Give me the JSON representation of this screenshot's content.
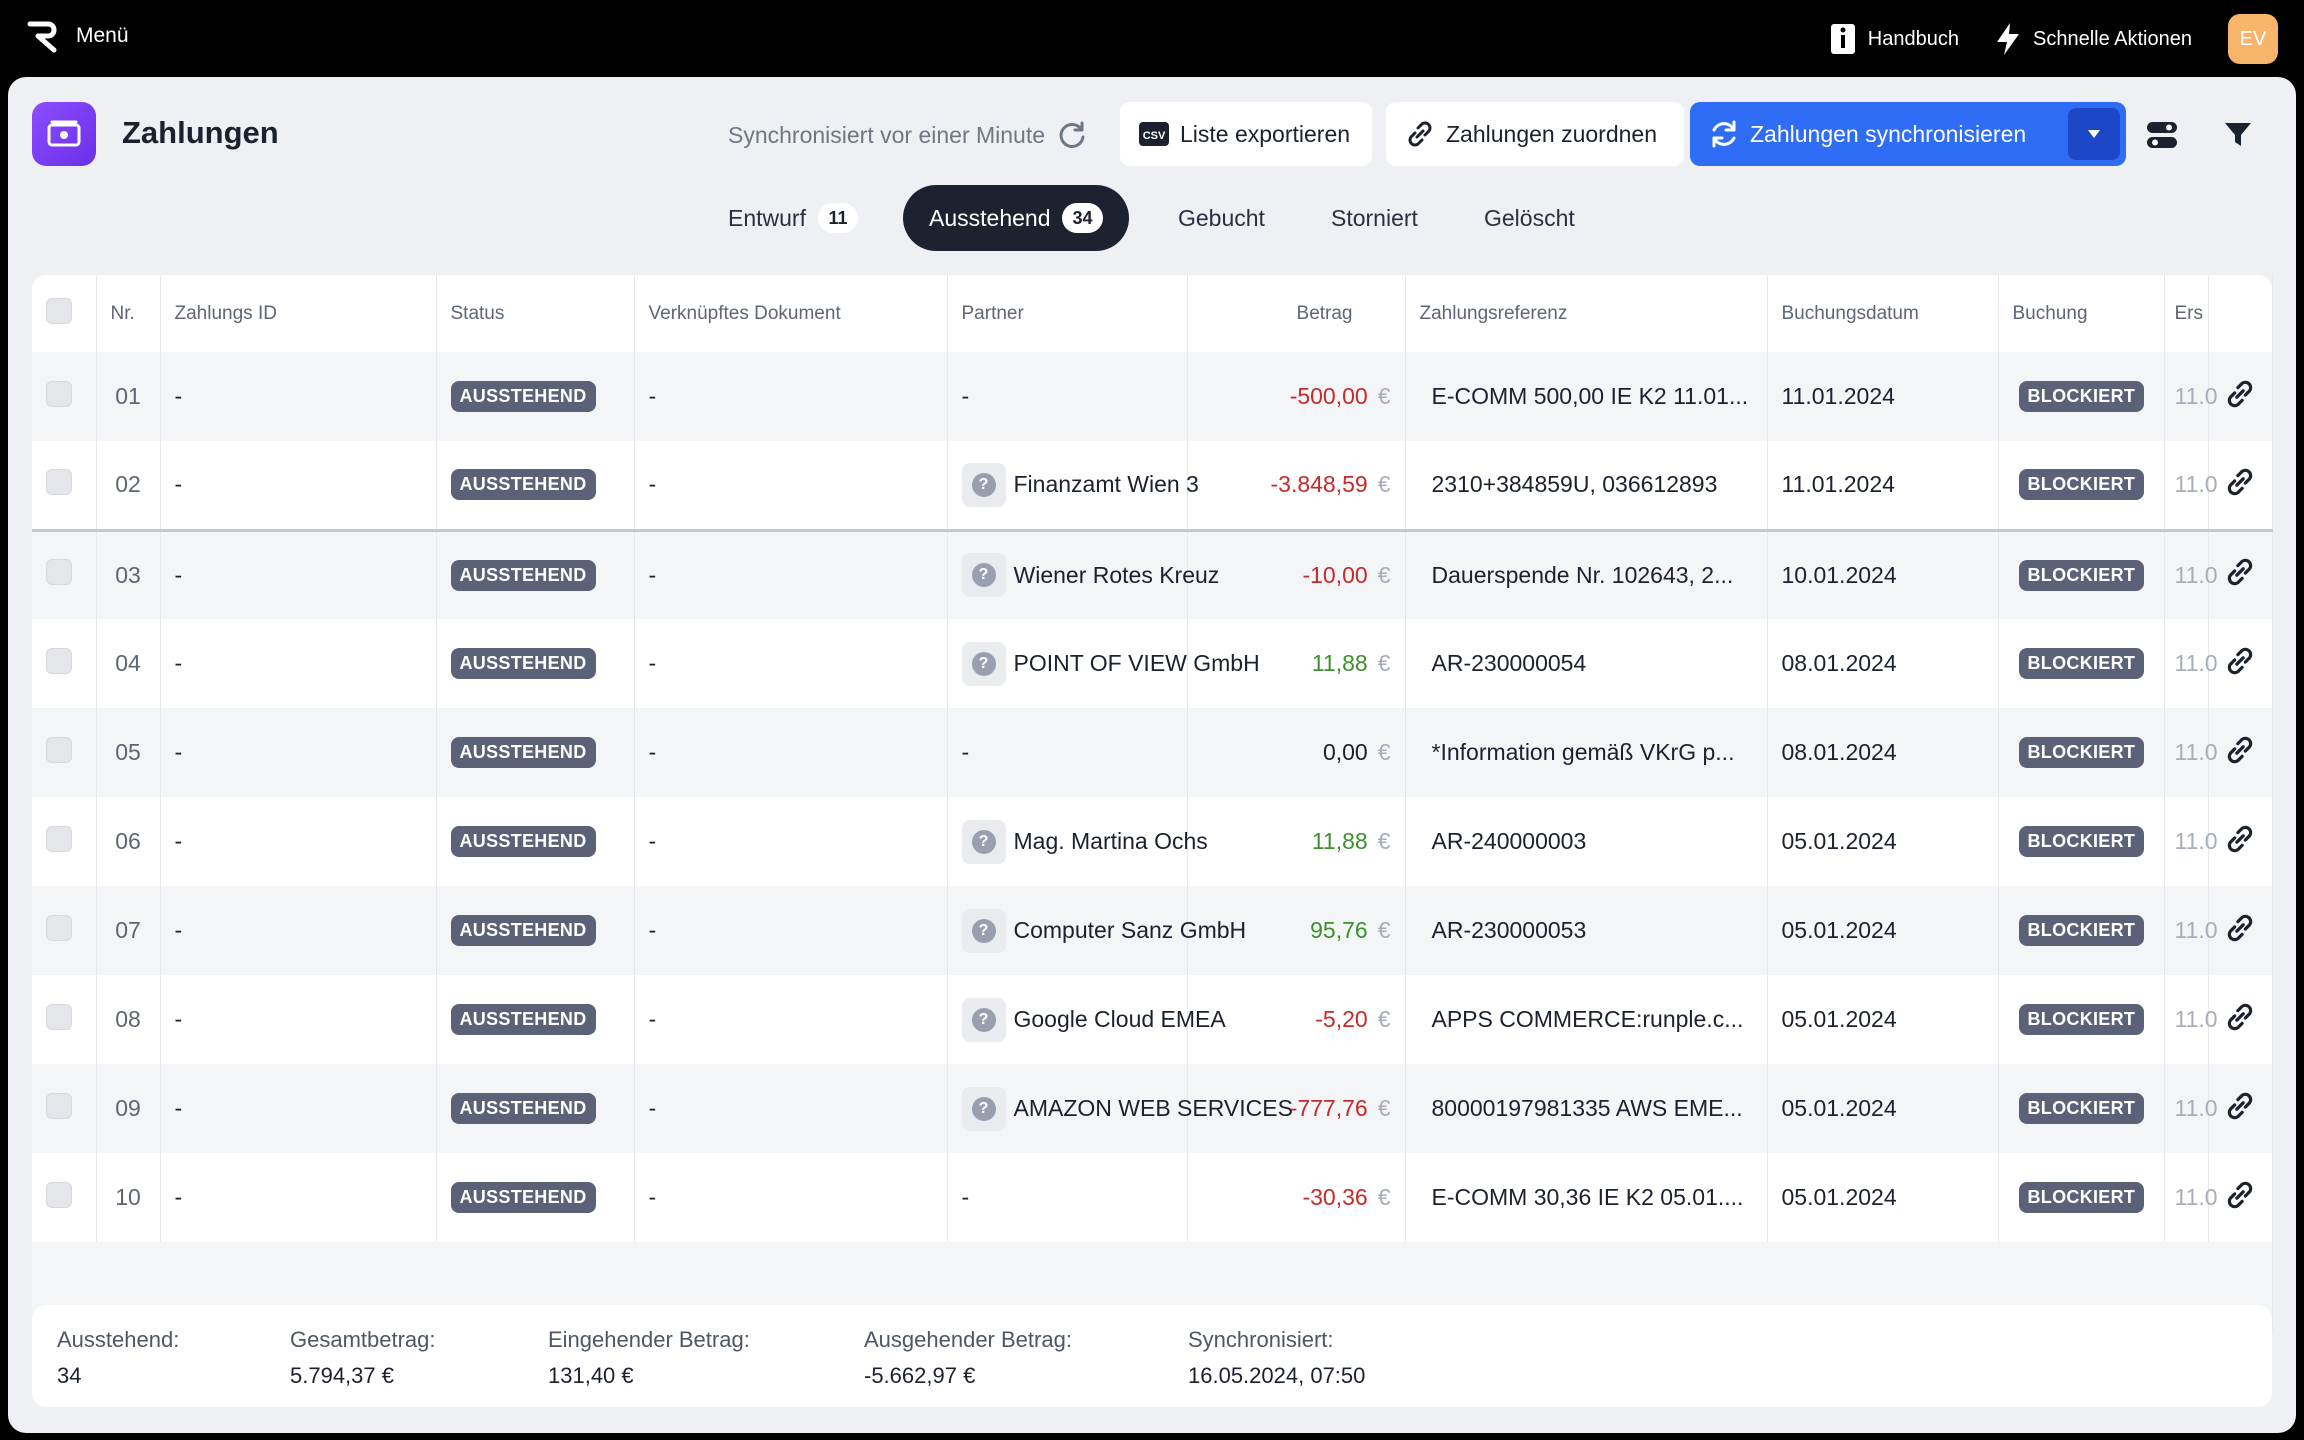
{
  "topbar": {
    "menu_label": "Menü",
    "manual_label": "Handbuch",
    "quick_actions_label": "Schnelle Aktionen",
    "avatar_initials": "EV"
  },
  "header": {
    "title": "Zahlungen",
    "sync_status": "Synchronisiert vor einer Minute",
    "export_label": "Liste exportieren",
    "export_icon_text": "CSV",
    "assign_label": "Zahlungen zuordnen",
    "sync_label": "Zahlungen synchronisieren"
  },
  "tabs": [
    {
      "label": "Entwurf",
      "count": "11",
      "active": false
    },
    {
      "label": "Ausstehend",
      "count": "34",
      "active": true
    },
    {
      "label": "Gebucht",
      "count": null,
      "active": false
    },
    {
      "label": "Storniert",
      "count": null,
      "active": false
    },
    {
      "label": "Gelöscht",
      "count": null,
      "active": false
    }
  ],
  "table": {
    "columns": {
      "nr": "Nr.",
      "payment_id": "Zahlungs ID",
      "status": "Status",
      "document": "Verknüpftes Dokument",
      "partner": "Partner",
      "amount": "Betrag",
      "reference": "Zahlungsreferenz",
      "booking_date": "Buchungsdatum",
      "booking": "Buchung",
      "created": "Ers"
    },
    "currency": "€",
    "rows": [
      {
        "nr": "01",
        "id": "-",
        "status": "AUSSTEHEND",
        "doc": "-",
        "partner": "-",
        "partner_icon": false,
        "amount": "-500,00",
        "sign": "neg",
        "reference": "E-COMM 500,00 IE K2 11.01...",
        "date": "11.01.2024",
        "booking": "BLOCKIERT",
        "created": "11.0"
      },
      {
        "nr": "02",
        "id": "-",
        "status": "AUSSTEHEND",
        "doc": "-",
        "partner": "Finanzamt Wien 3",
        "partner_icon": true,
        "amount": "-3.848,59",
        "sign": "neg",
        "reference": "2310+384859U, 036612893",
        "date": "11.01.2024",
        "booking": "BLOCKIERT",
        "created": "11.0"
      },
      {
        "nr": "03",
        "id": "-",
        "status": "AUSSTEHEND",
        "doc": "-",
        "partner": "Wiener Rotes Kreuz",
        "partner_icon": true,
        "amount": "-10,00",
        "sign": "neg",
        "reference": "Dauerspende Nr. 102643, 2...",
        "date": "10.01.2024",
        "booking": "BLOCKIERT",
        "created": "11.0"
      },
      {
        "nr": "04",
        "id": "-",
        "status": "AUSSTEHEND",
        "doc": "-",
        "partner": "POINT OF VIEW GmbH",
        "partner_icon": true,
        "amount": "11,88",
        "sign": "pos",
        "reference": "AR-230000054",
        "date": "08.01.2024",
        "booking": "BLOCKIERT",
        "created": "11.0"
      },
      {
        "nr": "05",
        "id": "-",
        "status": "AUSSTEHEND",
        "doc": "-",
        "partner": "-",
        "partner_icon": false,
        "amount": "0,00",
        "sign": "zero",
        "reference": "*Information gemäß VKrG p...",
        "date": "08.01.2024",
        "booking": "BLOCKIERT",
        "created": "11.0"
      },
      {
        "nr": "06",
        "id": "-",
        "status": "AUSSTEHEND",
        "doc": "-",
        "partner": "Mag. Martina Ochs",
        "partner_icon": true,
        "amount": "11,88",
        "sign": "pos",
        "reference": "AR-240000003",
        "date": "05.01.2024",
        "booking": "BLOCKIERT",
        "created": "11.0"
      },
      {
        "nr": "07",
        "id": "-",
        "status": "AUSSTEHEND",
        "doc": "-",
        "partner": "Computer Sanz GmbH",
        "partner_icon": true,
        "amount": "95,76",
        "sign": "pos",
        "reference": "AR-230000053",
        "date": "05.01.2024",
        "booking": "BLOCKIERT",
        "created": "11.0"
      },
      {
        "nr": "08",
        "id": "-",
        "status": "AUSSTEHEND",
        "doc": "-",
        "partner": "Google Cloud EMEA",
        "partner_icon": true,
        "amount": "-5,20",
        "sign": "neg",
        "reference": "APPS COMMERCE:runple.c...",
        "date": "05.01.2024",
        "booking": "BLOCKIERT",
        "created": "11.0"
      },
      {
        "nr": "09",
        "id": "-",
        "status": "AUSSTEHEND",
        "doc": "-",
        "partner": "AMAZON WEB SERVICES",
        "partner_icon": true,
        "amount": "-777,76",
        "sign": "neg",
        "reference": "80000197981335 AWS EME...",
        "date": "05.01.2024",
        "booking": "BLOCKIERT",
        "created": "11.0"
      },
      {
        "nr": "10",
        "id": "-",
        "status": "AUSSTEHEND",
        "doc": "-",
        "partner": "-",
        "partner_icon": false,
        "amount": "-30,36",
        "sign": "neg",
        "reference": "E-COMM 30,36 IE K2 05.01....",
        "date": "05.01.2024",
        "booking": "BLOCKIERT",
        "created": "11.0"
      }
    ]
  },
  "footer": {
    "pending_label": "Ausstehend:",
    "pending_value": "34",
    "total_label": "Gesamtbetrag:",
    "total_value": "5.794,37 €",
    "incoming_label": "Eingehender Betrag:",
    "incoming_value": "131,40 €",
    "outgoing_label": "Ausgehender Betrag:",
    "outgoing_value": "-5.662,97 €",
    "synced_label": "Synchronisiert:",
    "synced_value": "16.05.2024, 07:50"
  },
  "colors": {
    "accent": "#2f6df6",
    "negative": "#c62a2a",
    "positive": "#3f8f2e",
    "status_pill": "#5b6177"
  }
}
